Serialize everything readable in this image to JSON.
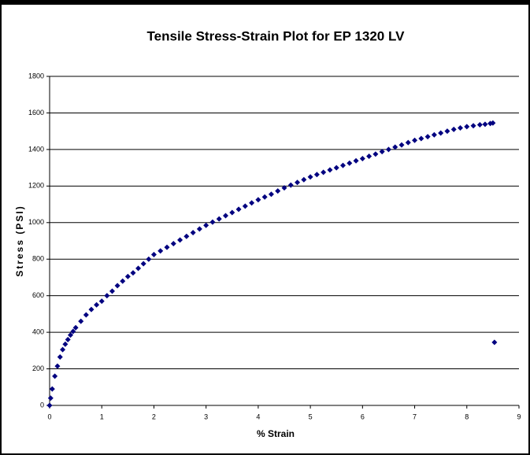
{
  "chart_data": {
    "type": "scatter",
    "title": "Tensile Stress-Strain Plot for EP 1320 LV",
    "x_label": "% Strain",
    "y_label": "Stress (PSI)",
    "xlim": [
      0,
      9
    ],
    "ylim": [
      0,
      1800
    ],
    "xticks": [
      0,
      1,
      2,
      3,
      4,
      5,
      6,
      7,
      8,
      9
    ],
    "yticks": [
      0,
      200,
      400,
      600,
      800,
      1000,
      1200,
      1400,
      1600,
      1800
    ],
    "grid": true,
    "color": "#000080",
    "x": [
      0,
      0.02,
      0.05,
      0.1,
      0.15,
      0.2,
      0.25,
      0.3,
      0.35,
      0.4,
      0.45,
      0.5,
      0.6,
      0.7,
      0.8,
      0.9,
      1.0,
      1.1,
      1.2,
      1.3,
      1.4,
      1.5,
      1.6,
      1.7,
      1.8,
      1.9,
      2.0,
      2.125,
      2.25,
      2.375,
      2.5,
      2.625,
      2.75,
      2.875,
      3.0,
      3.125,
      3.25,
      3.375,
      3.5,
      3.625,
      3.75,
      3.875,
      4.0,
      4.125,
      4.25,
      4.375,
      4.5,
      4.625,
      4.75,
      4.875,
      5.0,
      5.125,
      5.25,
      5.375,
      5.5,
      5.625,
      5.75,
      5.875,
      6.0,
      6.125,
      6.25,
      6.375,
      6.5,
      6.625,
      6.75,
      6.875,
      7.0,
      7.125,
      7.25,
      7.375,
      7.5,
      7.625,
      7.75,
      7.875,
      8.0,
      8.125,
      8.25,
      8.35,
      8.45,
      8.5,
      8.53
    ],
    "values": [
      0,
      40,
      90,
      160,
      215,
      265,
      305,
      335,
      360,
      385,
      405,
      425,
      460,
      495,
      525,
      550,
      570,
      600,
      625,
      655,
      680,
      705,
      725,
      750,
      775,
      800,
      825,
      845,
      865,
      885,
      905,
      925,
      945,
      965,
      985,
      1003,
      1020,
      1038,
      1055,
      1073,
      1090,
      1108,
      1125,
      1140,
      1155,
      1173,
      1190,
      1205,
      1220,
      1235,
      1250,
      1263,
      1275,
      1288,
      1300,
      1313,
      1325,
      1338,
      1350,
      1363,
      1375,
      1388,
      1400,
      1413,
      1425,
      1438,
      1450,
      1460,
      1470,
      1480,
      1490,
      1500,
      1510,
      1518,
      1525,
      1530,
      1535,
      1538,
      1542,
      1545,
      345
    ]
  }
}
